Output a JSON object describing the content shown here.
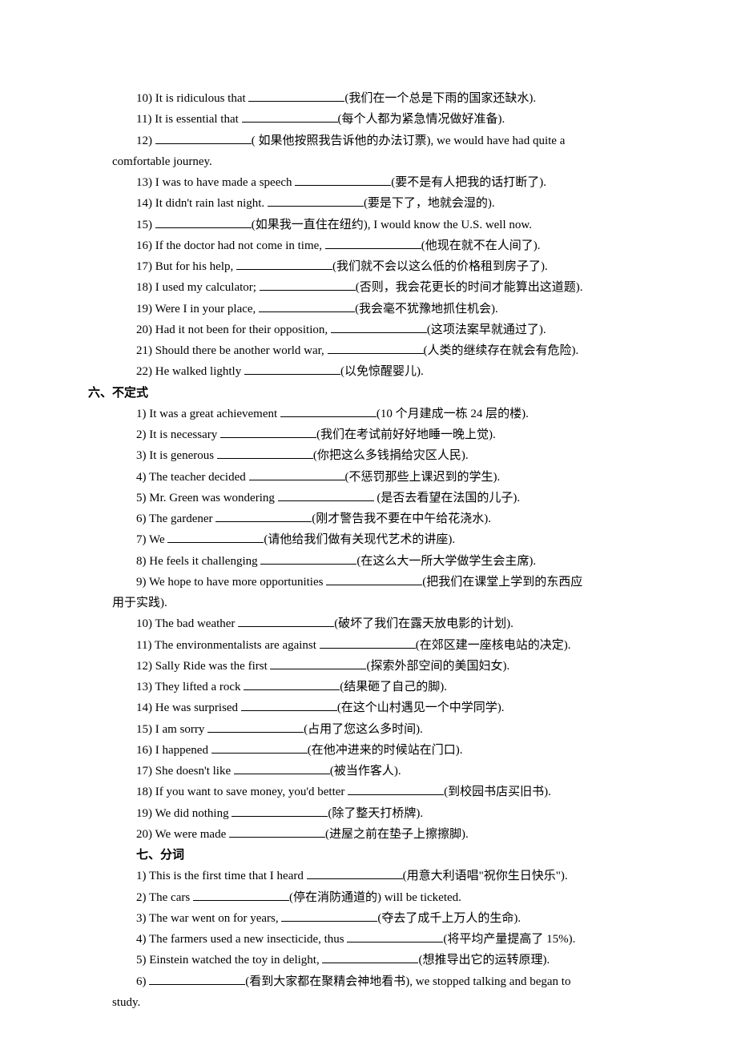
{
  "lines": [
    {
      "cls": "line",
      "num": "10) ",
      "pre": "It is ridiculous that ",
      "post": "(我们在一个总是下雨的国家还缺水)."
    },
    {
      "cls": "line",
      "num": "11) ",
      "pre": "It is essential that ",
      "post": "(每个人都为紧急情况做好准备)."
    },
    {
      "cls": "line",
      "num": "12) ",
      "pre": "",
      "post": "( 如果他按照我告诉他的办法订票), we would have had quite a"
    },
    {
      "cls": "line-noindent",
      "text": "comfortable journey."
    },
    {
      "cls": "line",
      "num": "13) ",
      "pre": "I was to have made a speech ",
      "post": "(要不是有人把我的话打断了)."
    },
    {
      "cls": "line",
      "num": "14) ",
      "pre": "It didn't rain last night. ",
      "post": "(要是下了，地就会湿的)."
    },
    {
      "cls": "line",
      "num": "15) ",
      "pre": "",
      "post": "(如果我一直住在纽约), I would know the U.S. well now."
    },
    {
      "cls": "line",
      "num": "16) ",
      "pre": "If the doctor had not come in time, ",
      "post": "(他现在就不在人间了)."
    },
    {
      "cls": "line",
      "num": "17) ",
      "pre": "But for his help, ",
      "post": "(我们就不会以这么低的价格租到房子了)."
    },
    {
      "cls": "line",
      "num": "18) ",
      "pre": "I used my calculator; ",
      "post": "(否则，我会花更长的时间才能算出这道题)."
    },
    {
      "cls": "line",
      "num": "19) ",
      "pre": "Were I in your place, ",
      "post": "(我会毫不犹豫地抓住机会)."
    },
    {
      "cls": "line",
      "num": "20) ",
      "pre": "Had it not been for their opposition, ",
      "post": "(这项法案早就通过了)."
    },
    {
      "cls": "line",
      "num": "21) ",
      "pre": "Should there be another world war, ",
      "post": "(人类的继续存在就会有危险)."
    },
    {
      "cls": "line",
      "num": "22) ",
      "pre": "He walked lightly ",
      "post": "(以免惊醒婴儿)."
    },
    {
      "cls": "heading",
      "text": "六、不定式"
    },
    {
      "cls": "line",
      "num": "1) ",
      "pre": "It was a great achievement ",
      "post": "(10 个月建成一栋 24 层的楼)."
    },
    {
      "cls": "line",
      "num": "2) ",
      "pre": "It is necessary ",
      "post": "(我们在考试前好好地睡一晚上觉)."
    },
    {
      "cls": "line",
      "num": "3) ",
      "pre": "It is generous ",
      "post": "(你把这么多钱捐给灾区人民)."
    },
    {
      "cls": "line",
      "num": "4) ",
      "pre": "The teacher decided ",
      "post": "(不惩罚那些上课迟到的学生)."
    },
    {
      "cls": "line",
      "num": "5) ",
      "pre": "Mr. Green was wondering ",
      "post": " (是否去看望在法国的儿子)."
    },
    {
      "cls": "line",
      "num": "6) ",
      "pre": "The gardener ",
      "post": "(刚才警告我不要在中午给花浇水)."
    },
    {
      "cls": "line",
      "num": "7) ",
      "pre": "We ",
      "post": "(请他给我们做有关现代艺术的讲座)."
    },
    {
      "cls": "line",
      "num": "8) ",
      "pre": "He feels it challenging ",
      "post": "(在这么大一所大学做学生会主席)."
    },
    {
      "cls": "line",
      "num": "9) ",
      "pre": "We hope to have more opportunities ",
      "post": "(把我们在课堂上学到的东西应"
    },
    {
      "cls": "line-noindent",
      "text": "用于实践)."
    },
    {
      "cls": "line",
      "num": "10) ",
      "pre": "The bad weather ",
      "post": "(破坏了我们在露天放电影的计划)."
    },
    {
      "cls": "line",
      "num": "11) ",
      "pre": "The environmentalists are against ",
      "post": "(在郊区建一座核电站的决定)."
    },
    {
      "cls": "line",
      "num": "12) ",
      "pre": "Sally Ride was the first ",
      "post": "(探索外部空间的美国妇女)."
    },
    {
      "cls": "line",
      "num": "13) ",
      "pre": "They lifted a rock ",
      "post": "(结果砸了自己的脚)."
    },
    {
      "cls": "line",
      "num": "14) ",
      "pre": "He was surprised ",
      "post": "(在这个山村遇见一个中学同学)."
    },
    {
      "cls": "line",
      "num": "15) ",
      "pre": "I am sorry ",
      "post": "(占用了您这么多时间)."
    },
    {
      "cls": "line",
      "num": "16) ",
      "pre": "I happened ",
      "post": "(在他冲进来的时候站在门口)."
    },
    {
      "cls": "line",
      "num": "17) ",
      "pre": "She doesn't like ",
      "post": "(被当作客人)."
    },
    {
      "cls": "line",
      "num": "18) ",
      "pre": "If you want to save money, you'd better ",
      "post": "(到校园书店买旧书)."
    },
    {
      "cls": "line",
      "num": "19) ",
      "pre": "We did nothing ",
      "post": "(除了整天打桥牌)."
    },
    {
      "cls": "line",
      "num": "20) ",
      "pre": "We were made ",
      "post": "(进屋之前在垫子上擦擦脚)."
    },
    {
      "cls": "subheading",
      "text": "七、分词"
    },
    {
      "cls": "line",
      "num": "1) ",
      "pre": "This is the first time that I heard ",
      "post": "(用意大利语唱\"祝你生日快乐\")."
    },
    {
      "cls": "line",
      "num": "2) ",
      "pre": "The cars ",
      "post": "(停在消防通道的) will be ticketed."
    },
    {
      "cls": "line",
      "num": "3) ",
      "pre": "The war went on for years, ",
      "post": "(夺去了成千上万人的生命)."
    },
    {
      "cls": "line",
      "num": "4) ",
      "pre": "The farmers used a new insecticide, thus ",
      "post": "(将平均产量提高了 15%)."
    },
    {
      "cls": "line",
      "num": "5) ",
      "pre": "Einstein watched the toy in delight, ",
      "post": "(想推导出它的运转原理)."
    },
    {
      "cls": "line",
      "num": "6) ",
      "pre": "",
      "post": "(看到大家都在聚精会神地看书), we stopped talking and began to"
    },
    {
      "cls": "line-noindent",
      "text": "study."
    }
  ]
}
